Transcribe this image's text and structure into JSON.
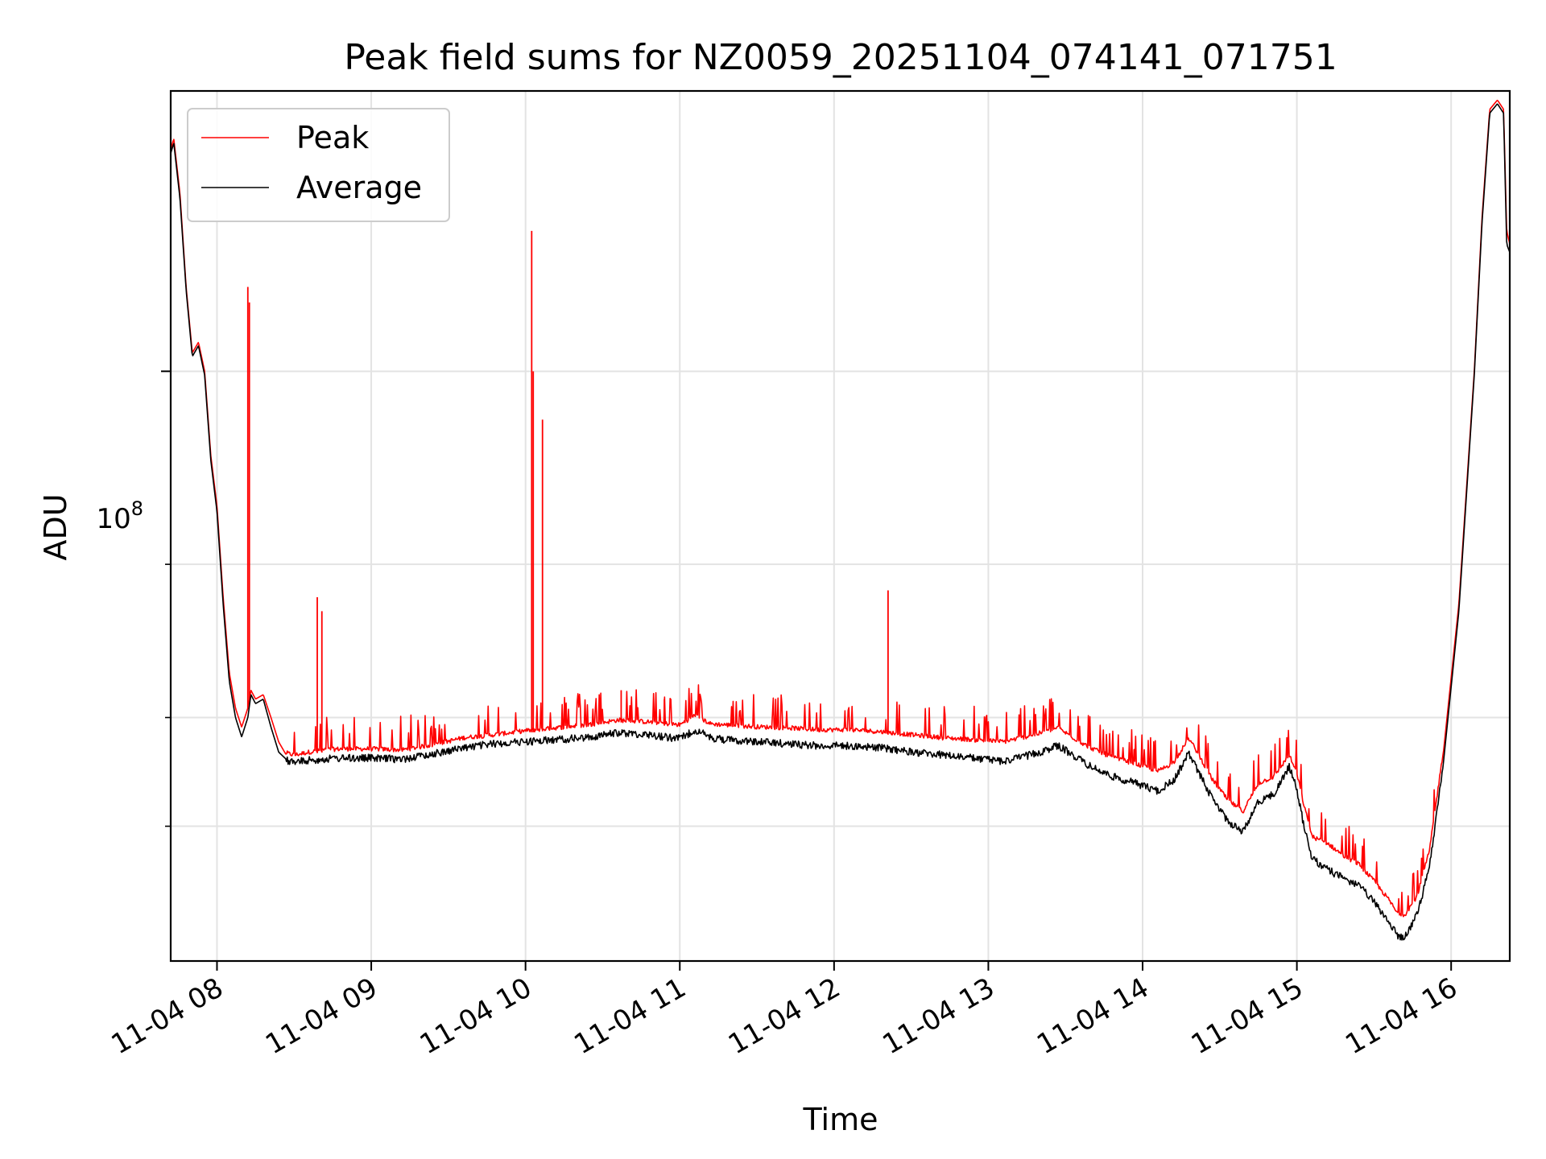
{
  "chart_data": {
    "type": "line",
    "title": "Peak field sums for NZ0059_20251104_074141_071751",
    "xlabel": "Time",
    "ylabel": "ADU",
    "yscale": "log",
    "ylim": [
      21000000,
      210000000
    ],
    "xlim": [
      7.7,
      16.38
    ],
    "grid": true,
    "legend_position": "upper-left",
    "x_tick_values": [
      8,
      9,
      10,
      11,
      12,
      13,
      14,
      15,
      16
    ],
    "x_tick_labels": [
      "11-04 08",
      "11-04 09",
      "11-04 10",
      "11-04 11",
      "11-04 12",
      "11-04 13",
      "11-04 14",
      "11-04 15",
      "11-04 16"
    ],
    "y_major_ticks": [
      {
        "value": 100000000,
        "base": "10",
        "exponent": "8"
      }
    ],
    "y_minor_ticks": [
      30000000,
      40000000,
      60000000
    ],
    "series": [
      {
        "name": "Peak",
        "color": "#ff0000",
        "x": [
          7.7,
          7.72,
          7.76,
          7.8,
          7.84,
          7.88,
          7.92,
          7.96,
          8.0,
          8.04,
          8.08,
          8.12,
          8.16,
          8.2,
          8.22,
          8.25,
          8.3,
          8.35,
          8.4,
          8.45,
          8.5,
          8.6,
          8.7,
          8.8,
          9.0,
          9.2,
          9.4,
          9.6,
          9.8,
          10.0,
          10.2,
          10.4,
          10.6,
          10.8,
          11.0,
          11.1,
          11.2,
          11.3,
          11.5,
          11.7,
          11.9,
          12.1,
          12.3,
          12.5,
          12.7,
          12.9,
          13.1,
          13.3,
          13.45,
          13.55,
          13.65,
          13.8,
          13.95,
          14.1,
          14.2,
          14.3,
          14.35,
          14.45,
          14.55,
          14.65,
          14.75,
          14.85,
          14.95,
          15.0,
          15.05,
          15.1,
          15.2,
          15.3,
          15.4,
          15.5,
          15.6,
          15.65,
          15.7,
          15.78,
          15.86,
          15.95,
          16.05,
          16.15,
          16.2,
          16.25,
          16.3,
          16.34,
          16.36,
          16.38
        ],
        "values": [
          180000000,
          185000000,
          160000000,
          125000000,
          105000000,
          108000000,
          100000000,
          80000000,
          70000000,
          55000000,
          45000000,
          41000000,
          39000000,
          41000000,
          43000000,
          42000000,
          42500000,
          40000000,
          37500000,
          36200000,
          36000000,
          36300000,
          36500000,
          36600000,
          36600000,
          36500000,
          37000000,
          37700000,
          38000000,
          38400000,
          38700000,
          39000000,
          39500000,
          39300000,
          39000000,
          40000000,
          39100000,
          39000000,
          38800000,
          38700000,
          38500000,
          38500000,
          38300000,
          38000000,
          37700000,
          37500000,
          37300000,
          38000000,
          38700000,
          37700000,
          36800000,
          35800000,
          35200000,
          34500000,
          35300000,
          37600000,
          36400000,
          33800000,
          32000000,
          31000000,
          33400000,
          34000000,
          36000000,
          34300000,
          31300000,
          29000000,
          28500000,
          27600000,
          27000000,
          25800000,
          24500000,
          23700000,
          23600000,
          24800000,
          28000000,
          36500000,
          54000000,
          100000000,
          150000000,
          200000000,
          205000000,
          200000000,
          145000000,
          140000000
        ]
      },
      {
        "name": "Average",
        "color": "#000000",
        "x": [
          7.7,
          7.72,
          7.76,
          7.8,
          7.84,
          7.88,
          7.92,
          7.96,
          8.0,
          8.04,
          8.08,
          8.12,
          8.16,
          8.2,
          8.22,
          8.25,
          8.3,
          8.35,
          8.4,
          8.45,
          8.5,
          8.6,
          8.7,
          8.8,
          9.0,
          9.2,
          9.4,
          9.6,
          9.8,
          10.0,
          10.2,
          10.4,
          10.6,
          10.8,
          11.0,
          11.1,
          11.2,
          11.3,
          11.5,
          11.7,
          11.9,
          12.1,
          12.3,
          12.5,
          12.7,
          12.9,
          13.1,
          13.3,
          13.45,
          13.55,
          13.65,
          13.8,
          13.95,
          14.1,
          14.2,
          14.3,
          14.35,
          14.45,
          14.55,
          14.65,
          14.75,
          14.85,
          14.95,
          15.0,
          15.05,
          15.1,
          15.2,
          15.3,
          15.4,
          15.5,
          15.6,
          15.65,
          15.7,
          15.78,
          15.86,
          15.95,
          16.05,
          16.15,
          16.2,
          16.25,
          16.3,
          16.34,
          16.36,
          16.38
        ],
        "values": [
          178000000,
          183000000,
          158000000,
          124000000,
          104000000,
          107000000,
          99000000,
          79000000,
          69000000,
          54000000,
          44000000,
          40000000,
          38000000,
          40000000,
          42500000,
          41500000,
          42000000,
          39000000,
          36500000,
          35800000,
          35600000,
          35800000,
          35900000,
          36000000,
          36000000,
          35900000,
          36400000,
          37000000,
          37400000,
          37600000,
          37800000,
          38000000,
          38500000,
          38300000,
          37900000,
          38800000,
          38000000,
          37800000,
          37600000,
          37400000,
          37200000,
          37200000,
          37000000,
          36600000,
          36300000,
          36000000,
          35700000,
          36400000,
          37200000,
          36300000,
          35300000,
          34300000,
          33700000,
          33000000,
          33900000,
          36500000,
          35000000,
          32400000,
          30500000,
          29600000,
          32100000,
          32700000,
          35200000,
          33100000,
          29800000,
          27600000,
          26800000,
          26200000,
          25700000,
          24600000,
          23300000,
          22500000,
          22400000,
          23800000,
          27000000,
          35500000,
          53000000,
          99000000,
          148000000,
          198000000,
          203000000,
          198000000,
          140000000,
          137000000
        ]
      }
    ],
    "spikes": [
      {
        "series": "Peak",
        "x": 8.2,
        "value": 125000000
      },
      {
        "series": "Peak",
        "x": 8.21,
        "value": 120000000
      },
      {
        "series": "Peak",
        "x": 8.65,
        "value": 55000000
      },
      {
        "series": "Peak",
        "x": 8.68,
        "value": 53000000
      },
      {
        "series": "Peak",
        "x": 10.04,
        "value": 145000000
      },
      {
        "series": "Peak",
        "x": 10.05,
        "value": 100000000
      },
      {
        "series": "Peak",
        "x": 10.11,
        "value": 88000000
      },
      {
        "series": "Peak",
        "x": 10.62,
        "value": 43000000
      },
      {
        "series": "Peak",
        "x": 10.9,
        "value": 42000000
      },
      {
        "series": "Peak",
        "x": 12.35,
        "value": 56000000
      }
    ]
  }
}
